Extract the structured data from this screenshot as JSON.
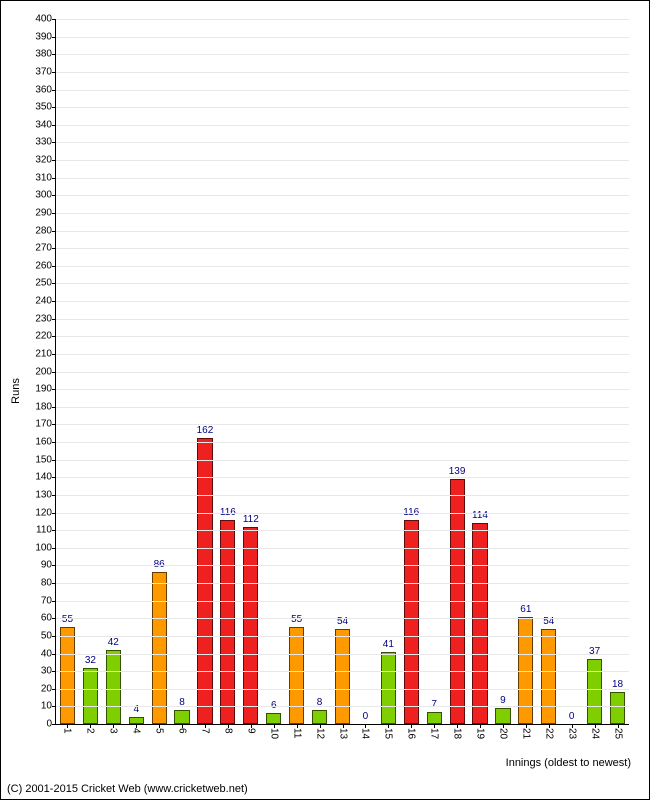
{
  "chart": {
    "type": "bar",
    "ylabel": "Runs",
    "xlabel": "Innings (oldest to newest)",
    "ylim": [
      0,
      400
    ],
    "ytick_step": 10,
    "background_color": "#ffffff",
    "grid_color": "#e8e8e8",
    "axis_color": "#000000",
    "value_label_color": "#000080",
    "tick_fontsize": 10,
    "label_fontsize": 11,
    "bar_width_ratio": 0.66,
    "colors": {
      "orange": "#ff9900",
      "green": "#7fce00",
      "red": "#ee2020"
    },
    "categories": [
      "1",
      "2",
      "3",
      "4",
      "5",
      "6",
      "7",
      "8",
      "9",
      "10",
      "11",
      "12",
      "13",
      "14",
      "15",
      "16",
      "17",
      "18",
      "19",
      "20",
      "21",
      "22",
      "23",
      "24",
      "25"
    ],
    "bars": [
      {
        "label": "55",
        "value": 55,
        "color": "orange"
      },
      {
        "label": "32",
        "value": 32,
        "color": "green"
      },
      {
        "label": "42",
        "value": 42,
        "color": "green"
      },
      {
        "label": "4",
        "value": 4,
        "color": "green"
      },
      {
        "label": "86",
        "value": 86,
        "color": "orange"
      },
      {
        "label": "8",
        "value": 8,
        "color": "green"
      },
      {
        "label": "162",
        "value": 162,
        "color": "red"
      },
      {
        "label": "116",
        "value": 116,
        "color": "red"
      },
      {
        "label": "112",
        "value": 112,
        "color": "red"
      },
      {
        "label": "6",
        "value": 6,
        "color": "green"
      },
      {
        "label": "55",
        "value": 55,
        "color": "orange"
      },
      {
        "label": "8",
        "value": 8,
        "color": "green"
      },
      {
        "label": "54",
        "value": 54,
        "color": "orange"
      },
      {
        "label": "0",
        "value": 0,
        "color": "green"
      },
      {
        "label": "41",
        "value": 41,
        "color": "green"
      },
      {
        "label": "116",
        "value": 116,
        "color": "red"
      },
      {
        "label": "7",
        "value": 7,
        "color": "green"
      },
      {
        "label": "139",
        "value": 139,
        "color": "red"
      },
      {
        "label": "114",
        "value": 114,
        "color": "red"
      },
      {
        "label": "9",
        "value": 9,
        "color": "green"
      },
      {
        "label": "61",
        "value": 61,
        "color": "orange"
      },
      {
        "label": "54",
        "value": 54,
        "color": "orange"
      },
      {
        "label": "0",
        "value": 0,
        "color": "green"
      },
      {
        "label": "37",
        "value": 37,
        "color": "green"
      },
      {
        "label": "18",
        "value": 18,
        "color": "green"
      }
    ]
  },
  "copyright": "(C) 2001-2015 Cricket Web (www.cricketweb.net)"
}
